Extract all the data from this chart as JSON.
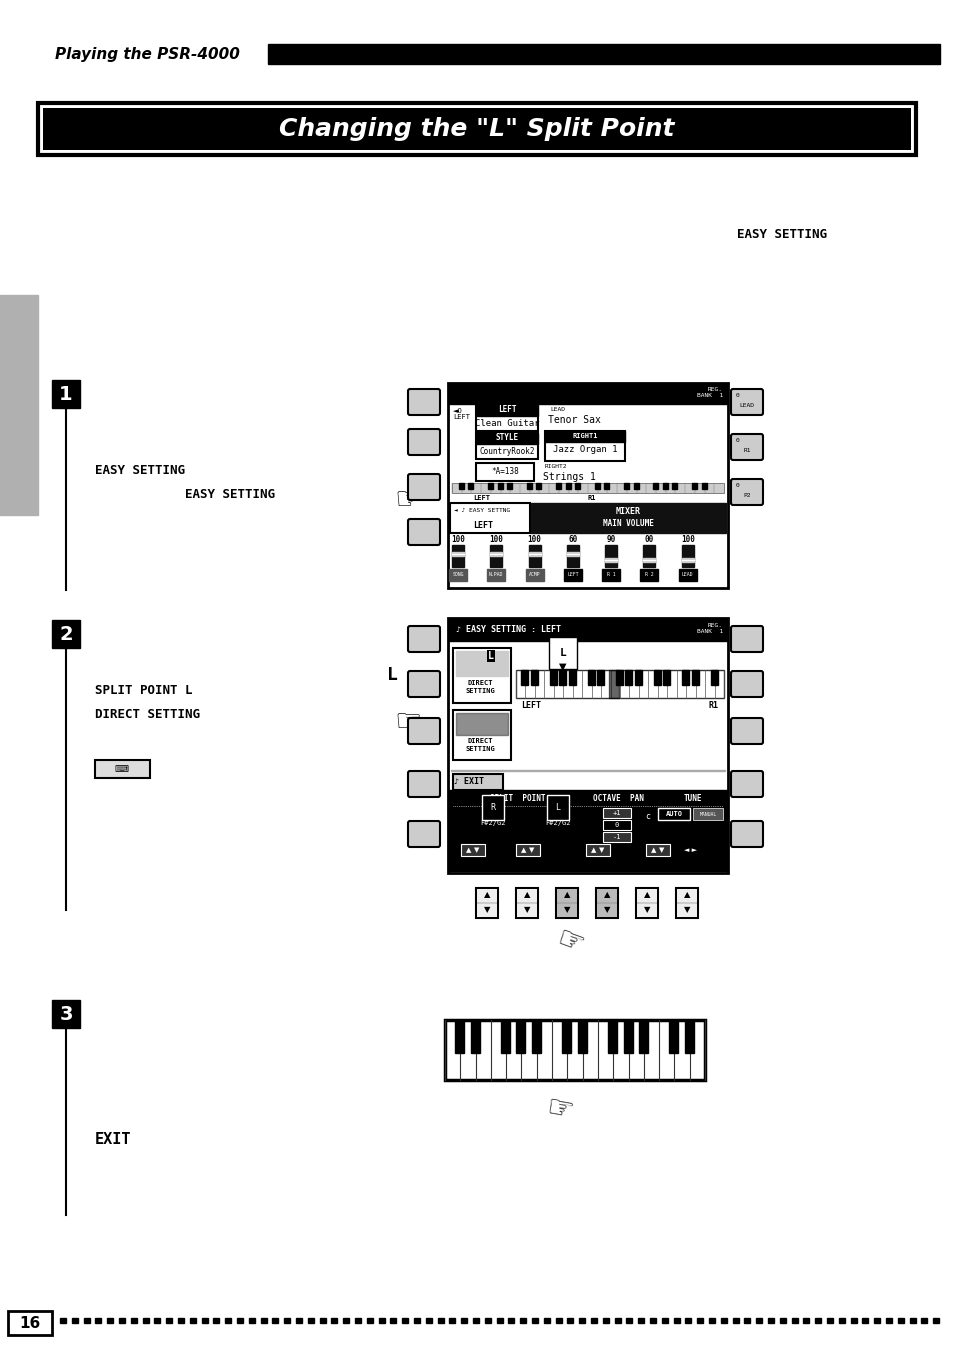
{
  "page_num": "16",
  "header_text": "Playing the PSR-4000",
  "title_text": "Changing the \"L\" Split Point",
  "bg_color": "#ffffff",
  "easy_setting_label": "EASY SETTING",
  "step1_text1": "EASY SETTING",
  "step1_text2": "EASY SETTING",
  "step2_text1": "SPLIT POINT L",
  "step2_text2": "DIRECT SETTING",
  "step3_text1": "EXIT",
  "L_label": "L"
}
